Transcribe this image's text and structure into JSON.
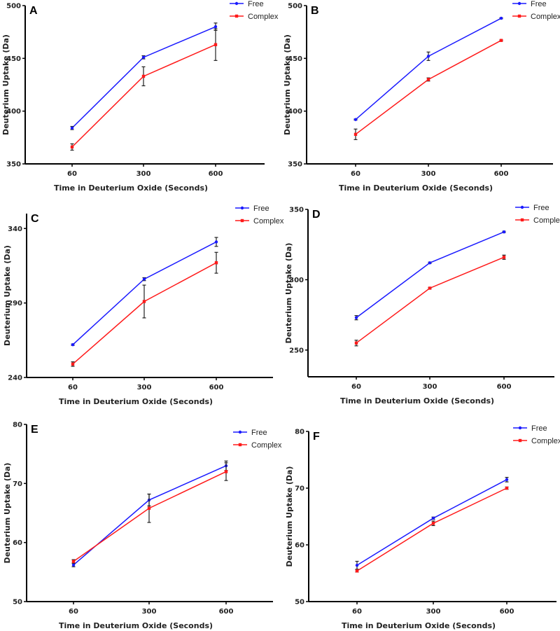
{
  "colors": {
    "free": "#1a1aff",
    "complex": "#ff1a1a",
    "error": "#222222",
    "axis": "#000000"
  },
  "chart_data": [
    {
      "type": "line",
      "panel": "A",
      "xlabel": "Time in Deuterium Oxide (Seconds)",
      "ylabel": "Deuterium Uptake  (Da)",
      "categories": [
        "60",
        "300",
        "600"
      ],
      "ylim": [
        350,
        500
      ],
      "yticks": [
        350,
        400,
        450,
        500
      ],
      "legend": "top-right",
      "series": [
        {
          "name": "Free",
          "values": [
            384,
            451,
            480
          ],
          "errors": [
            1.5,
            1.5,
            3.5
          ]
        },
        {
          "name": "Complex",
          "values": [
            366,
            433,
            463
          ],
          "errors": [
            3,
            9,
            15
          ]
        }
      ]
    },
    {
      "type": "line",
      "panel": "B",
      "xlabel": "Time in Deuterium Oxide (Seconds)",
      "ylabel": "Deuterium Uptake  (Da)",
      "categories": [
        "60",
        "300",
        "600"
      ],
      "ylim": [
        350,
        500
      ],
      "yticks": [
        350,
        400,
        450,
        500
      ],
      "legend": "top-right",
      "series": [
        {
          "name": "Free",
          "values": [
            392,
            452,
            488
          ],
          "errors": [
            0.5,
            4,
            0.5
          ]
        },
        {
          "name": "Complex",
          "values": [
            378,
            430,
            467
          ],
          "errors": [
            5,
            1.5,
            0.5
          ]
        }
      ]
    },
    {
      "type": "line",
      "panel": "C",
      "xlabel": "Time in Deuterium Oxide (Seconds)",
      "ylabel": "Deuterium Uptake  (Da)",
      "categories": [
        "60",
        "300",
        "600"
      ],
      "ylim": [
        240,
        350
      ],
      "yticks": [
        240,
        290,
        340
      ],
      "legend": "top-right",
      "series": [
        {
          "name": "Free",
          "values": [
            262,
            306,
            331
          ],
          "errors": [
            0.5,
            1,
            3
          ]
        },
        {
          "name": "Complex",
          "values": [
            249,
            291,
            317
          ],
          "errors": [
            1.5,
            11,
            7
          ]
        }
      ]
    },
    {
      "type": "line",
      "panel": "D",
      "xlabel": "Time in Deuterium Oxide (Seconds)",
      "ylabel": "Deuterium Uptake  (Da)",
      "categories": [
        "60",
        "300",
        "600"
      ],
      "ylim": [
        231,
        350
      ],
      "yticks": [
        250,
        300,
        350
      ],
      "legend": "top-right",
      "series": [
        {
          "name": "Free",
          "values": [
            273,
            312,
            334
          ],
          "errors": [
            1.5,
            0.5,
            0.5
          ]
        },
        {
          "name": "Complex",
          "values": [
            255,
            294,
            316
          ],
          "errors": [
            2,
            0.5,
            1.5
          ]
        }
      ]
    },
    {
      "type": "line",
      "panel": "E",
      "xlabel": "Time in Deuterium Oxide (Seconds)",
      "ylabel": "Deuterium Uptake  (Da)",
      "categories": [
        "60",
        "300",
        "600"
      ],
      "ylim": [
        50,
        80
      ],
      "yticks": [
        50,
        60,
        70,
        80
      ],
      "legend": "top-right",
      "series": [
        {
          "name": "Free",
          "values": [
            56.2,
            67.2,
            73
          ],
          "errors": [
            0.3,
            1,
            0.8
          ]
        },
        {
          "name": "Complex",
          "values": [
            56.8,
            65.8,
            72
          ],
          "errors": [
            0.3,
            2.4,
            1.5
          ]
        }
      ]
    },
    {
      "type": "line",
      "panel": "F",
      "xlabel": "Time in Deuterium Oxide (Seconds)",
      "ylabel": "Deuterium Uptake  (Da)",
      "categories": [
        "60",
        "300",
        "600"
      ],
      "ylim": [
        50,
        80
      ],
      "yticks": [
        50,
        60,
        70,
        80
      ],
      "legend": "top-right",
      "series": [
        {
          "name": "Free",
          "values": [
            56.4,
            64.7,
            71.5
          ],
          "errors": [
            0.7,
            0.2,
            0.4
          ]
        },
        {
          "name": "Complex",
          "values": [
            55.4,
            63.8,
            70
          ],
          "errors": [
            0.2,
            0.4,
            0.2
          ]
        }
      ]
    }
  ]
}
